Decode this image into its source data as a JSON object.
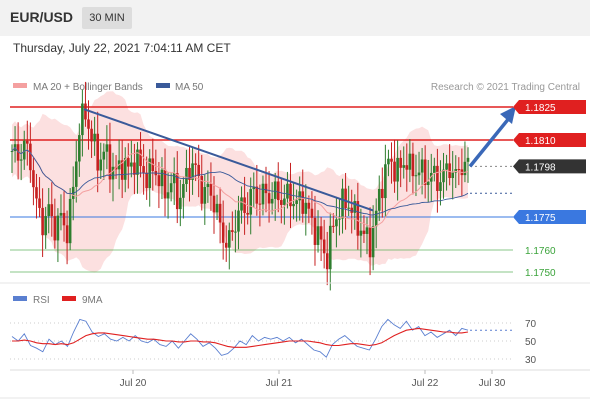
{
  "header": {
    "symbol": "EUR/USD",
    "interval": "30 MIN"
  },
  "timestamp": "Thursday, July 22, 2021 7:04:11 AM CET",
  "legend": {
    "items": [
      {
        "label": "MA 20 + Bollinger Bands",
        "color": "#f4a0a0"
      },
      {
        "label": "MA 50",
        "color": "#3a5a9a"
      }
    ],
    "credit": "Research © 2021 Trading Central"
  },
  "rsi_legend": {
    "items": [
      {
        "label": "RSI",
        "color": "#5a7fd0"
      },
      {
        "label": "9MA",
        "color": "#e02020"
      }
    ]
  },
  "chart_data": [
    {
      "type": "candlestick",
      "price_axis_range": [
        1.1745,
        1.183
      ],
      "x_ticks": [
        "Jul 20",
        "Jul 21",
        "Jul 22",
        "Jul 30"
      ],
      "levels": [
        {
          "value": 1.1825,
          "label": "1.1825",
          "color": "#e02020",
          "style": "resistance"
        },
        {
          "value": 1.181,
          "label": "1.1810",
          "color": "#e02020",
          "style": "resistance"
        },
        {
          "value": 1.1798,
          "label": "1.1798",
          "color": "#333333",
          "style": "last-price"
        },
        {
          "value": 1.1775,
          "label": "1.1775",
          "color": "#3a78e0",
          "style": "pivot"
        },
        {
          "value": 1.176,
          "label": "1.1760",
          "color": "#3aa33a",
          "style": "support"
        },
        {
          "value": 1.175,
          "label": "1.1750",
          "color": "#3aa33a",
          "style": "support"
        }
      ],
      "trendline": {
        "from": 1.1824,
        "to": 1.1778
      },
      "up_color": "#2e7d2e",
      "down_color": "#c62020",
      "close_path": [
        1.1805,
        1.1802,
        1.1808,
        1.18,
        1.178,
        1.1772,
        1.1778,
        1.177,
        1.1775,
        1.1768,
        1.179,
        1.1818,
        1.1822,
        1.181,
        1.18,
        1.1805,
        1.1798,
        1.1795,
        1.18,
        1.1796,
        1.1802,
        1.1797,
        1.1793,
        1.1798,
        1.1791,
        1.1786,
        1.1792,
        1.1782,
        1.179,
        1.18,
        1.1795,
        1.1785,
        1.1788,
        1.178,
        1.1768,
        1.1762,
        1.177,
        1.178,
        1.1778,
        1.1787,
        1.1783,
        1.1786,
        1.1784,
        1.1786,
        1.1782,
        1.1786,
        1.178,
        1.1784,
        1.1778,
        1.177,
        1.1765,
        1.1755,
        1.177,
        1.1778,
        1.1782,
        1.178,
        1.1772,
        1.1768,
        1.1762,
        1.1775,
        1.179,
        1.18,
        1.1798,
        1.1796,
        1.1802,
        1.1794,
        1.1798,
        1.1792,
        1.1795,
        1.1791,
        1.1794,
        1.1798,
        1.1793,
        1.1799,
        1.1798
      ]
    },
    {
      "type": "line",
      "title": "RSI",
      "y_ticks": [
        70,
        50,
        30
      ],
      "ylim": [
        20,
        80
      ],
      "overbought": 70,
      "oversold": 30,
      "series": [
        {
          "name": "RSI",
          "color": "#5a7fd0",
          "values": [
            55,
            50,
            58,
            45,
            42,
            38,
            52,
            46,
            50,
            44,
            60,
            74,
            72,
            60,
            55,
            58,
            52,
            50,
            54,
            50,
            56,
            50,
            48,
            52,
            46,
            44,
            50,
            42,
            50,
            58,
            52,
            44,
            48,
            42,
            34,
            36,
            42,
            50,
            46,
            56,
            50,
            54,
            52,
            54,
            50,
            54,
            48,
            52,
            46,
            40,
            38,
            32,
            46,
            52,
            56,
            50,
            44,
            42,
            40,
            52,
            66,
            74,
            68,
            64,
            72,
            62,
            66,
            56,
            60,
            54,
            58,
            62,
            56,
            64,
            62
          ]
        },
        {
          "name": "9MA",
          "color": "#e02020",
          "values": [
            50,
            50,
            51,
            50,
            48,
            47,
            47,
            46,
            47,
            46,
            48,
            52,
            56,
            58,
            59,
            59,
            58,
            57,
            56,
            55,
            54,
            53,
            52,
            52,
            51,
            50,
            50,
            49,
            49,
            50,
            50,
            49,
            49,
            48,
            46,
            44,
            43,
            43,
            43,
            44,
            45,
            46,
            47,
            48,
            49,
            50,
            50,
            50,
            50,
            49,
            48,
            46,
            45,
            45,
            46,
            47,
            47,
            46,
            45,
            46,
            48,
            52,
            56,
            59,
            62,
            63,
            64,
            63,
            62,
            61,
            60,
            60,
            59,
            59,
            60
          ]
        }
      ]
    }
  ]
}
